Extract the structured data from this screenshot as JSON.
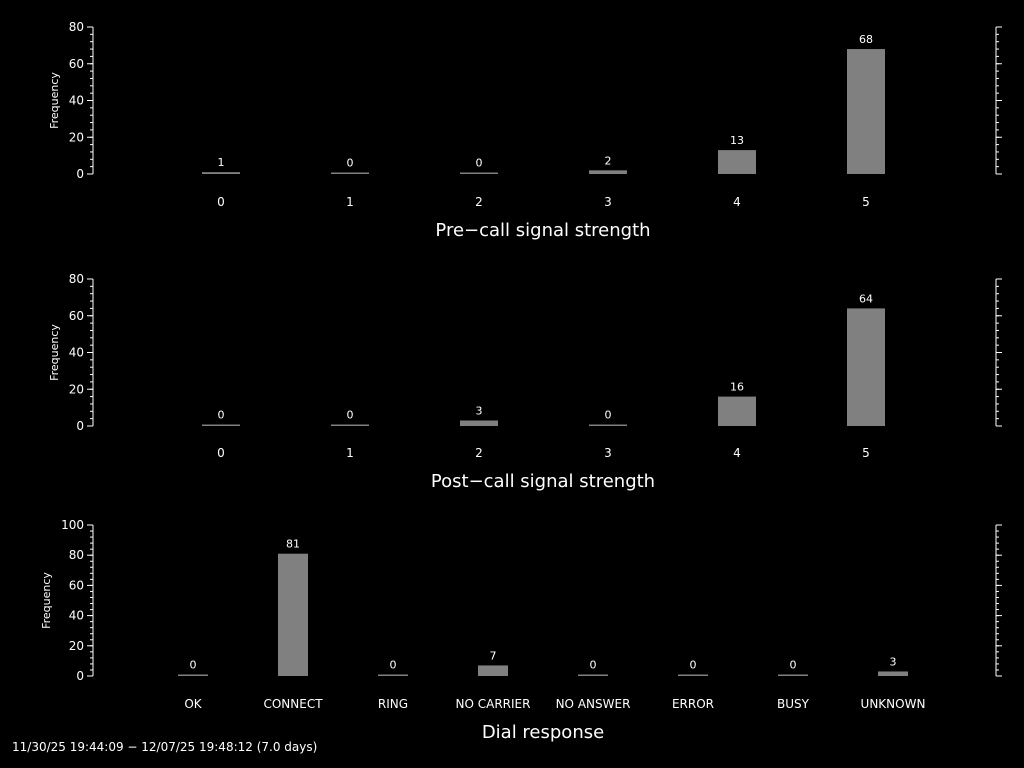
{
  "chart_data": [
    {
      "type": "bar",
      "xlabel": "Pre−call signal strength",
      "ylabel": "Frequency",
      "categories": [
        "0",
        "1",
        "2",
        "3",
        "4",
        "5"
      ],
      "values": [
        1,
        0,
        0,
        2,
        13,
        68
      ],
      "value_labels": [
        "1",
        "0",
        "0",
        "2",
        "13",
        "68"
      ],
      "yticks": [
        "0",
        "20",
        "40",
        "60",
        "80"
      ],
      "ylim": [
        0,
        80
      ],
      "bar_color": "#808080"
    },
    {
      "type": "bar",
      "xlabel": "Post−call signal strength",
      "ylabel": "Frequency",
      "categories": [
        "0",
        "1",
        "2",
        "3",
        "4",
        "5"
      ],
      "values": [
        0,
        0,
        3,
        0,
        16,
        64
      ],
      "value_labels": [
        "0",
        "0",
        "3",
        "0",
        "16",
        "64"
      ],
      "yticks": [
        "0",
        "20",
        "40",
        "60",
        "80"
      ],
      "ylim": [
        0,
        80
      ],
      "bar_color": "#808080"
    },
    {
      "type": "bar",
      "xlabel": "Dial response",
      "ylabel": "Frequency",
      "categories": [
        "OK",
        "CONNECT",
        "RING",
        "NO CARRIER",
        "NO ANSWER",
        "ERROR",
        "BUSY",
        "UNKNOWN"
      ],
      "values": [
        0,
        81,
        0,
        7,
        0,
        0,
        0,
        3
      ],
      "value_labels": [
        "0",
        "81",
        "0",
        "7",
        "0",
        "0",
        "0",
        "3"
      ],
      "yticks": [
        "0",
        "20",
        "40",
        "60",
        "80",
        "100"
      ],
      "ylim": [
        0,
        100
      ],
      "bar_color": "#808080"
    }
  ],
  "footer": "11/30/25 19:44:09 − 12/07/25 19:48:12 (7.0 days)"
}
